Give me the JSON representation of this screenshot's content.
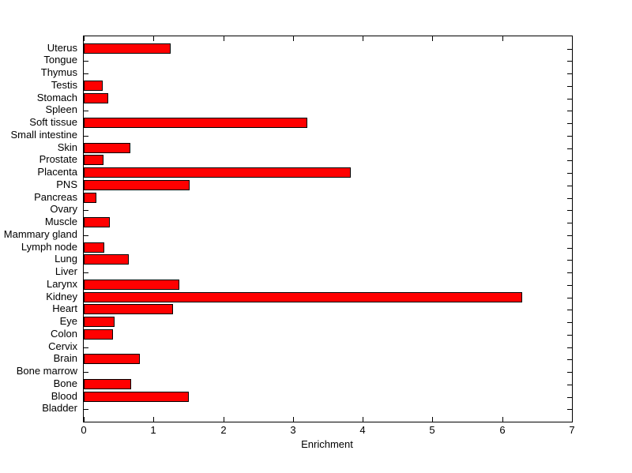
{
  "chart_data": {
    "type": "bar",
    "orientation": "horizontal",
    "title": "",
    "xlabel": "Enrichment",
    "ylabel": "",
    "xlim": [
      0,
      7
    ],
    "xticks": [
      0,
      1,
      2,
      3,
      4,
      5,
      6,
      7
    ],
    "grid": false,
    "legend": false,
    "bar_color": "#FF0000",
    "bar_edge_color": "#000000",
    "axis_color": "#000000",
    "background_color": "#FFFFFF",
    "categories_order": "top_to_bottom",
    "categories": [
      "Uterus",
      "Tongue",
      "Thymus",
      "Testis",
      "Stomach",
      "Spleen",
      "Soft tissue",
      "Small intestine",
      "Skin",
      "Prostate",
      "Placenta",
      "PNS",
      "Pancreas",
      "Ovary",
      "Muscle",
      "Mammary gland",
      "Lymph node",
      "Lung",
      "Liver",
      "Larynx",
      "Kidney",
      "Heart",
      "Eye",
      "Colon",
      "Cervix",
      "Brain",
      "Bone marrow",
      "Bone",
      "Blood",
      "Bladder"
    ],
    "values": [
      1.25,
      0,
      0,
      0.27,
      0.35,
      0,
      3.2,
      0,
      0.67,
      0.28,
      3.83,
      1.52,
      0.18,
      0,
      0.37,
      0,
      0.29,
      0.65,
      0,
      1.37,
      6.29,
      1.28,
      0.44,
      0.42,
      0,
      0.8,
      0,
      0.68,
      1.51,
      0
    ]
  }
}
